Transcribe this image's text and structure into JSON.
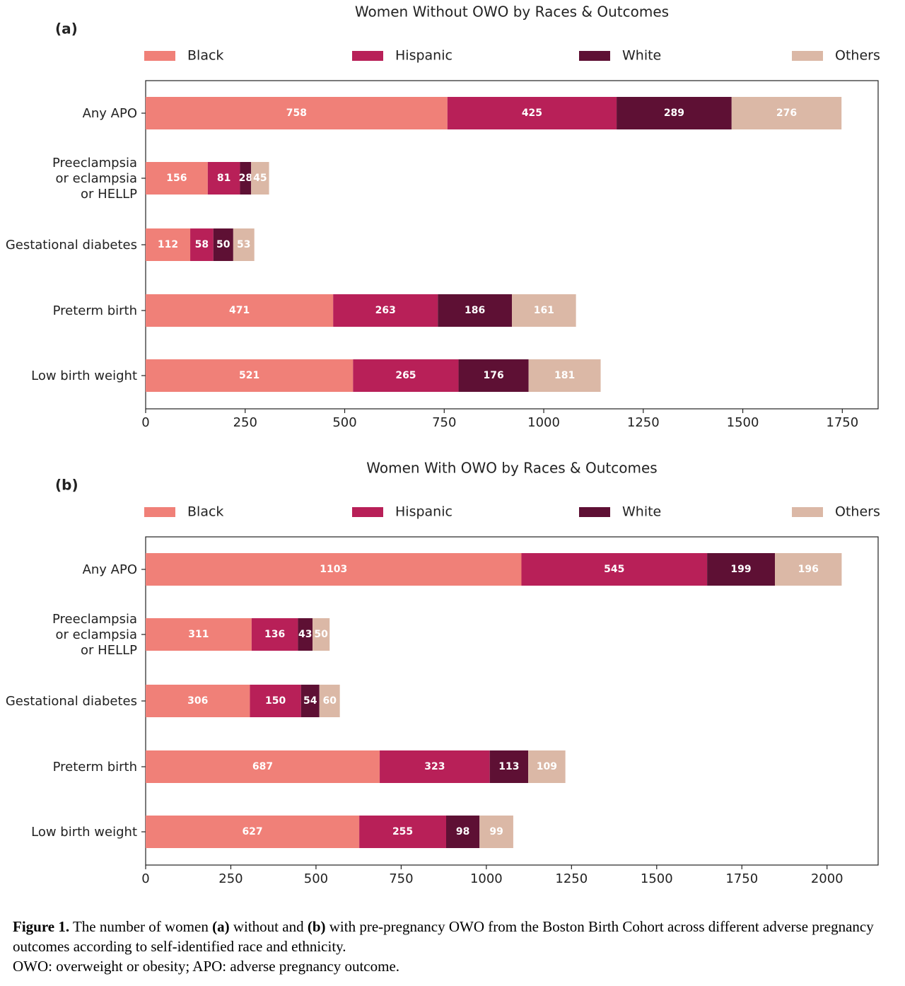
{
  "colors": {
    "Black": "#f08078",
    "Hispanic": "#b82058",
    "White": "#5e1034",
    "Others": "#dbb8a6",
    "label_light": "#ffffff"
  },
  "chart_data": [
    {
      "type": "bar",
      "orientation": "horizontal",
      "stacked": true,
      "panel": "(a)",
      "title": "Women Without OWO by Races & Outcomes",
      "legend": [
        "Black",
        "Hispanic",
        "White",
        "Others"
      ],
      "legend_position": "top",
      "categories": [
        "Any APO",
        "Preeclampsia\nor eclampsia\nor HELLP",
        "Gestational diabetes",
        "Preterm birth",
        "Low birth weight"
      ],
      "series": [
        {
          "name": "Black",
          "values": [
            758,
            156,
            112,
            471,
            521
          ]
        },
        {
          "name": "Hispanic",
          "values": [
            425,
            81,
            58,
            263,
            265
          ]
        },
        {
          "name": "White",
          "values": [
            289,
            28,
            50,
            186,
            176
          ]
        },
        {
          "name": "Others",
          "values": [
            276,
            45,
            53,
            161,
            181
          ]
        }
      ],
      "xlim": [
        0,
        1840
      ],
      "xticks": [
        0,
        250,
        500,
        750,
        1000,
        1250,
        1500,
        1750
      ],
      "xlabel": "",
      "ylabel": ""
    },
    {
      "type": "bar",
      "orientation": "horizontal",
      "stacked": true,
      "panel": "(b)",
      "title": "Women With OWO by Races & Outcomes",
      "legend": [
        "Black",
        "Hispanic",
        "White",
        "Others"
      ],
      "legend_position": "top",
      "categories": [
        "Any APO",
        "Preeclampsia\nor eclampsia\nor HELLP",
        "Gestational diabetes",
        "Preterm birth",
        "Low birth weight"
      ],
      "series": [
        {
          "name": "Black",
          "values": [
            1103,
            311,
            306,
            687,
            627
          ]
        },
        {
          "name": "Hispanic",
          "values": [
            545,
            136,
            150,
            323,
            255
          ]
        },
        {
          "name": "White",
          "values": [
            199,
            43,
            54,
            113,
            98
          ]
        },
        {
          "name": "Others",
          "values": [
            196,
            50,
            60,
            109,
            99
          ]
        }
      ],
      "xlim": [
        0,
        2150
      ],
      "xticks": [
        0,
        250,
        500,
        750,
        1000,
        1250,
        1500,
        1750,
        2000
      ],
      "xlabel": "",
      "ylabel": ""
    }
  ],
  "caption": {
    "figure_label": "Figure 1.",
    "text_1": " The number of women ",
    "a_label": "(a)",
    "text_2": " without and ",
    "b_label": "(b)",
    "text_3": " with pre-pregnancy OWO from the Boston Birth Cohort across different adverse pregnancy outcomes according to self-identified race and ethnicity.",
    "line_2": "OWO: overweight or obesity; APO: adverse pregnancy outcome."
  }
}
